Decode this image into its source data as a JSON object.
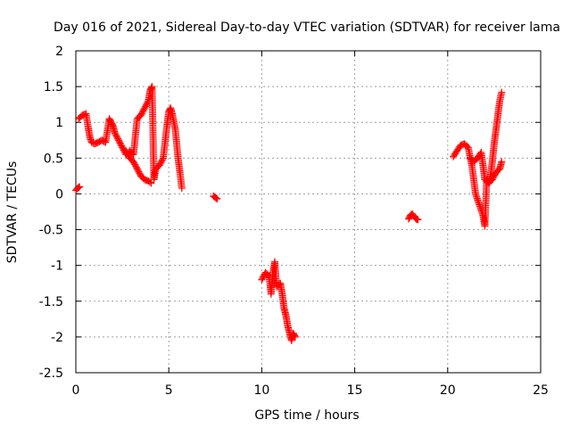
{
  "chart_data": {
    "type": "scatter",
    "title": "Day 016 of 2021, Sidereal Day-to-day VTEC variation (SDTVAR) for receiver lama",
    "xlabel": "GPS time / hours",
    "ylabel": "SDTVAR / TECUs",
    "xlim": [
      0,
      25
    ],
    "ylim": [
      -2.5,
      2
    ],
    "xticks": [
      0,
      5,
      10,
      15,
      20,
      25
    ],
    "xtick_labels": [
      "0",
      "5",
      "10",
      "15",
      "20",
      "25"
    ],
    "yticks": [
      -2.5,
      -2,
      -1.5,
      -1,
      -0.5,
      0,
      0.5,
      1,
      1.5,
      2
    ],
    "ytick_labels": [
      "-2.5",
      "-2",
      "-1.5",
      "-1",
      "-0.5",
      "0",
      "0.5",
      "1",
      "1.5",
      "2"
    ],
    "grid": true,
    "marker": "+",
    "marker_color": "#ff0000",
    "segments": [
      {
        "x": [
          0.0,
          0.1,
          0.2
        ],
        "y": [
          0.05,
          0.08,
          0.1
        ]
      },
      {
        "x": [
          0.15,
          0.35,
          0.55,
          0.65,
          0.75,
          0.85,
          1.0,
          1.2,
          1.4,
          1.6,
          1.8,
          1.9,
          2.0,
          2.1,
          2.3,
          2.5,
          2.7,
          2.9,
          3.1,
          3.3,
          3.5,
          3.7,
          3.9,
          4.0,
          4.1,
          4.2,
          4.3,
          4.5,
          4.7,
          4.9,
          5.0,
          5.1,
          5.2,
          5.35,
          5.5,
          5.6,
          5.7
        ],
        "y": [
          1.05,
          1.1,
          1.12,
          0.95,
          0.8,
          0.72,
          0.7,
          0.72,
          0.75,
          0.72,
          1.05,
          1.0,
          0.95,
          0.85,
          0.75,
          0.65,
          0.55,
          0.6,
          0.55,
          1.05,
          1.1,
          1.2,
          1.3,
          1.45,
          1.5,
          0.2,
          0.35,
          0.4,
          0.5,
          0.95,
          1.15,
          1.2,
          1.1,
          0.9,
          0.5,
          0.3,
          0.08
        ]
      },
      {
        "x": [
          2.7,
          2.9,
          3.1,
          3.3,
          3.5,
          3.7,
          3.9,
          4.05
        ],
        "y": [
          0.6,
          0.5,
          0.45,
          0.35,
          0.25,
          0.2,
          0.18,
          0.15
        ]
      },
      {
        "x": [
          7.4,
          7.5,
          7.6
        ],
        "y": [
          -0.03,
          -0.05,
          -0.07
        ]
      },
      {
        "x": [
          10.0,
          10.2,
          10.4,
          10.5,
          10.6,
          10.7,
          10.8,
          11.0,
          11.1,
          11.2,
          11.3,
          11.4,
          11.5,
          11.6,
          11.7,
          11.8
        ],
        "y": [
          -1.2,
          -1.1,
          -1.15,
          -1.4,
          -1.1,
          -0.95,
          -1.3,
          -1.25,
          -1.4,
          -1.6,
          -1.7,
          -1.85,
          -1.95,
          -2.05,
          -1.95,
          -2.0
        ]
      },
      {
        "x": [
          17.9,
          18.0,
          18.1,
          18.2,
          18.3,
          18.4
        ],
        "y": [
          -0.35,
          -0.3,
          -0.28,
          -0.32,
          -0.35,
          -0.36
        ]
      },
      {
        "x": [
          20.3,
          20.5,
          20.7,
          20.9,
          21.1,
          21.3,
          21.5,
          21.7,
          21.9,
          22.0,
          22.1,
          22.2,
          22.3,
          22.4,
          22.5,
          22.6,
          22.7,
          22.8,
          22.9
        ],
        "y": [
          0.52,
          0.6,
          0.68,
          0.7,
          0.65,
          0.4,
          0.0,
          -0.15,
          -0.3,
          -0.45,
          0.2,
          0.15,
          0.25,
          0.45,
          0.7,
          0.9,
          1.1,
          1.3,
          1.42
        ]
      },
      {
        "x": [
          21.2,
          21.4,
          21.6,
          21.8,
          21.9,
          22.0,
          22.2,
          22.4,
          22.6,
          22.8,
          22.9
        ],
        "y": [
          0.5,
          0.45,
          0.5,
          0.58,
          0.4,
          0.2,
          0.15,
          0.2,
          0.3,
          0.35,
          0.45
        ]
      }
    ]
  }
}
